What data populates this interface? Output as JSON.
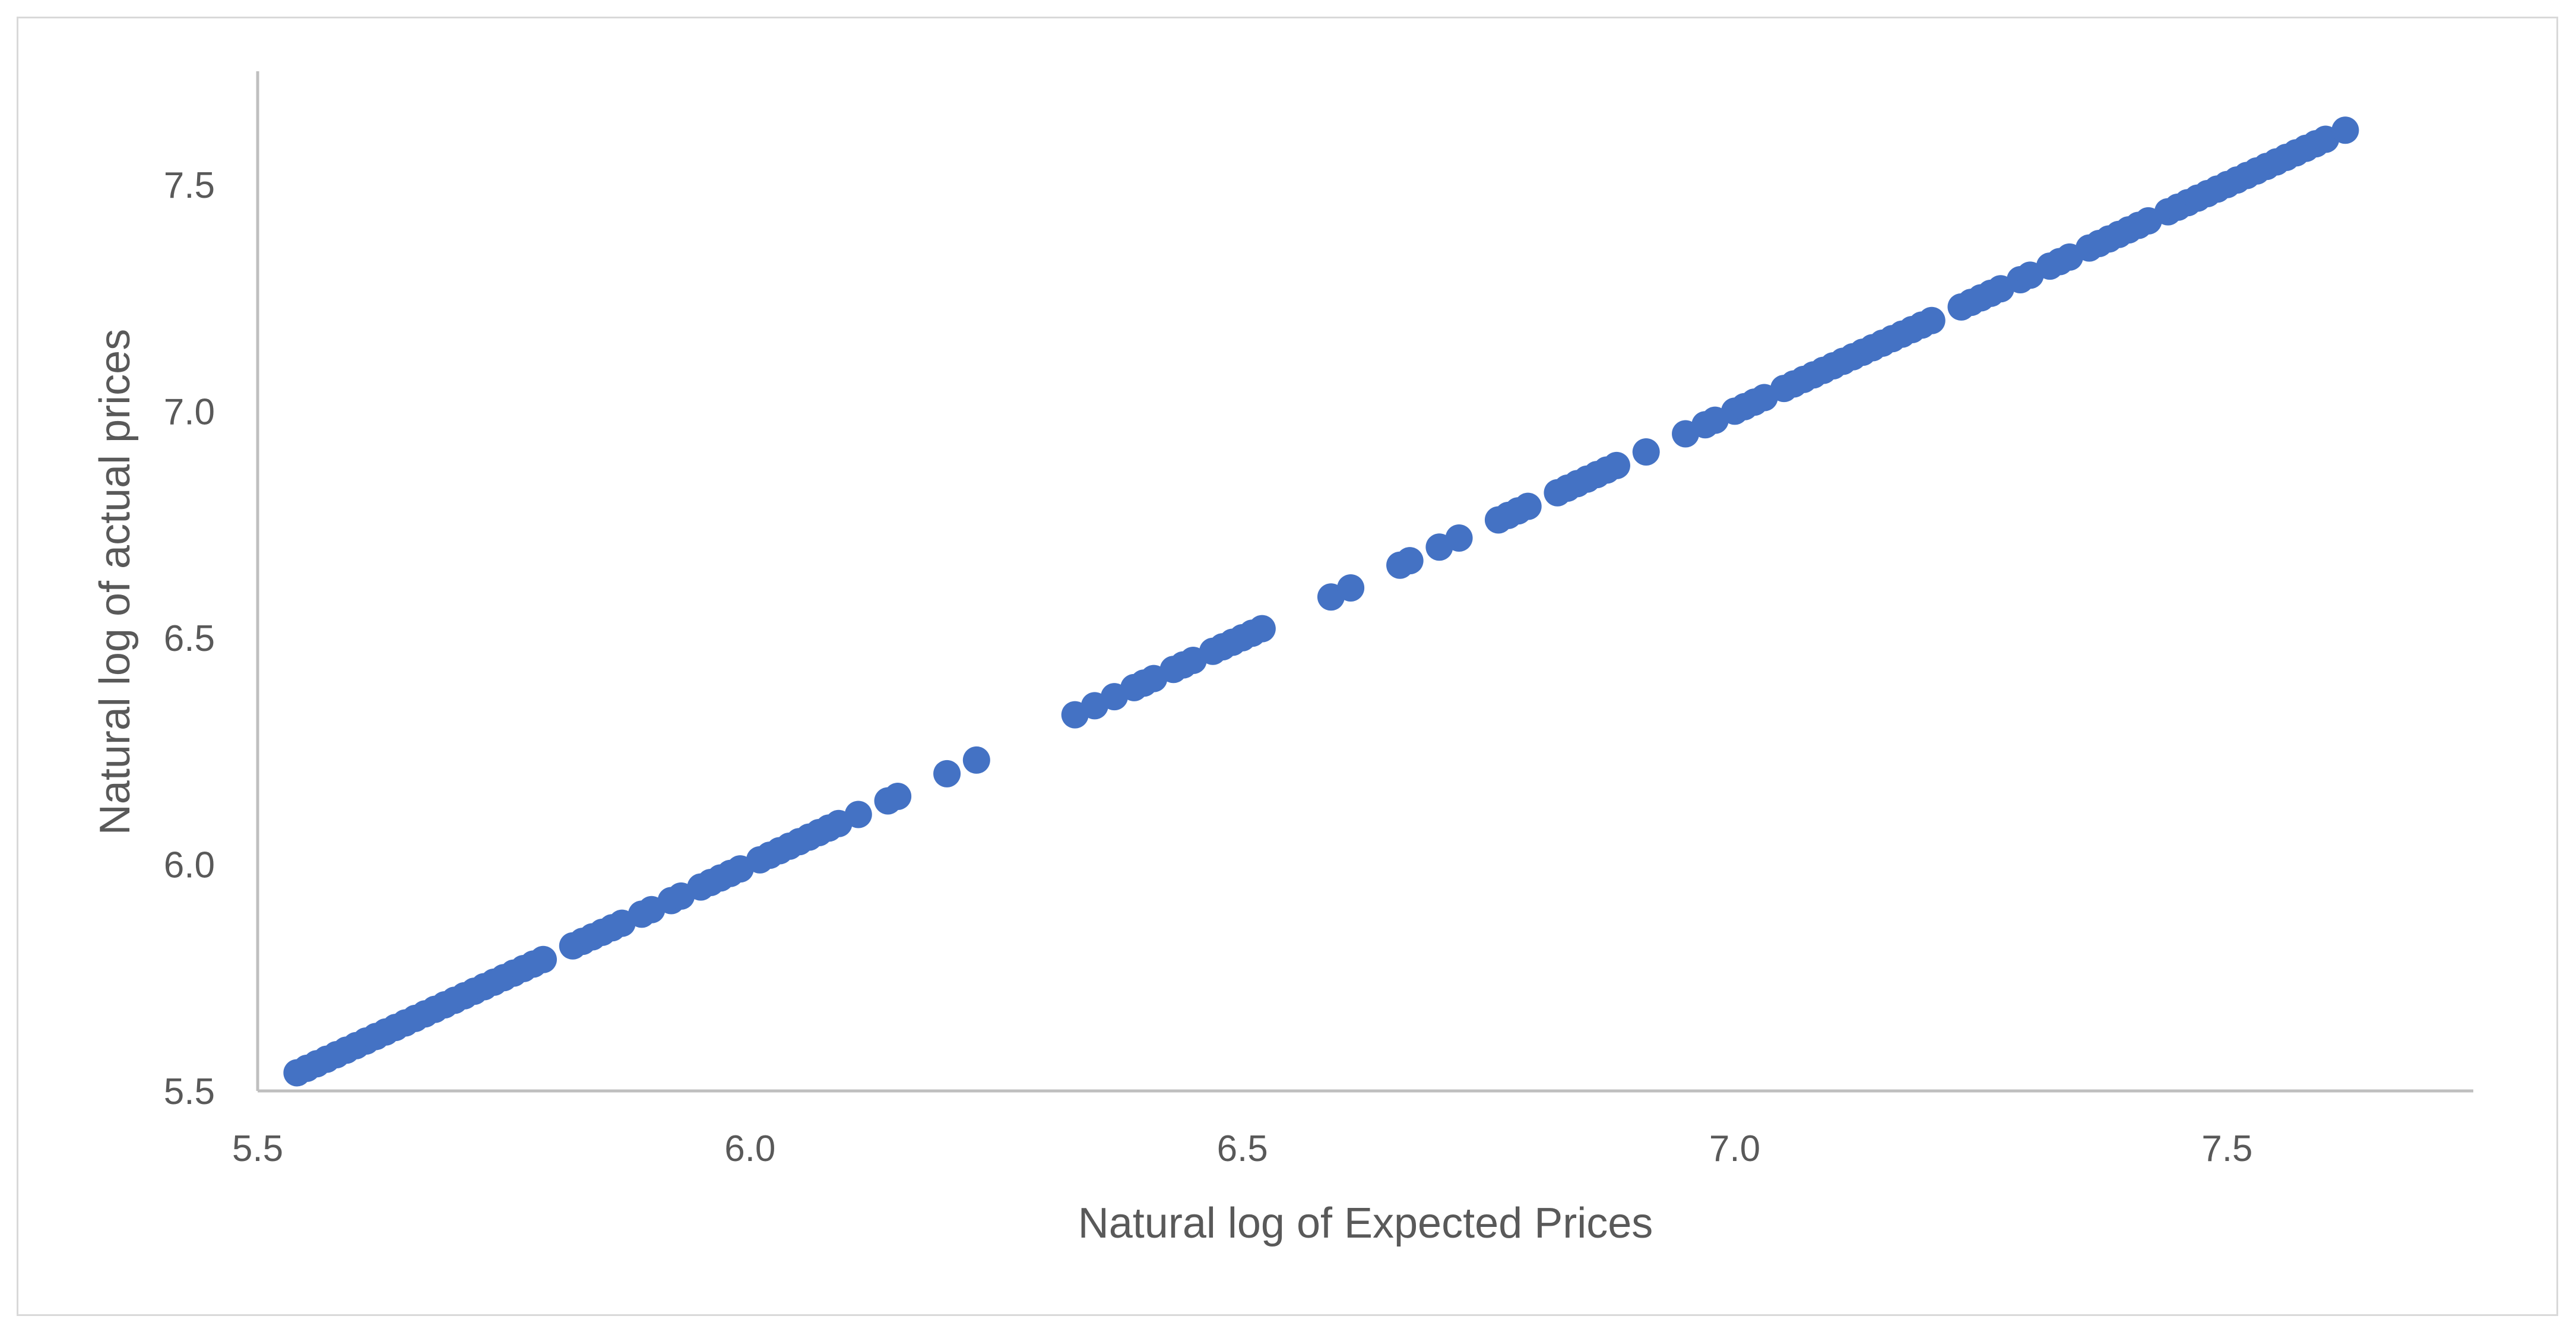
{
  "chart_data": {
    "type": "scatter",
    "title": "",
    "xlabel": "Natural log of Expected Prices",
    "ylabel": "Natural log of actual prices",
    "xlim": [
      5.5,
      7.75
    ],
    "ylim": [
      5.5,
      7.75
    ],
    "x_ticks": [
      "5.5",
      "6.0",
      "6.5",
      "7.0",
      "7.5"
    ],
    "y_ticks": [
      "5.5",
      "6.0",
      "6.5",
      "7.0",
      "7.5"
    ],
    "grid": false,
    "legend": "none",
    "marker_color": "#4472C4",
    "series": [
      {
        "x": [
          5.54,
          5.55,
          5.56,
          5.57,
          5.58,
          5.59,
          5.6,
          5.61,
          5.62,
          5.63,
          5.64,
          5.65,
          5.66,
          5.67,
          5.68,
          5.69,
          5.7,
          5.71,
          5.72,
          5.73,
          5.74,
          5.75,
          5.76,
          5.77,
          5.78,
          5.79,
          5.82,
          5.83,
          5.84,
          5.85,
          5.86,
          5.87,
          5.89,
          5.9,
          5.92,
          5.93,
          5.95,
          5.96,
          5.97,
          5.98,
          5.99,
          6.01,
          6.02,
          6.03,
          6.04,
          6.05,
          6.06,
          6.07,
          6.08,
          6.09,
          6.11,
          6.14,
          6.15,
          6.2,
          6.23,
          6.33,
          6.35,
          6.37,
          6.39,
          6.4,
          6.41,
          6.43,
          6.44,
          6.45,
          6.47,
          6.48,
          6.49,
          6.5,
          6.51,
          6.52,
          6.59,
          6.61,
          6.66,
          6.67,
          6.7,
          6.72,
          6.76,
          6.77,
          6.78,
          6.79,
          6.82,
          6.83,
          6.84,
          6.85,
          6.86,
          6.87,
          6.88,
          6.91,
          6.95,
          6.97,
          6.98,
          7.0,
          7.01,
          7.02,
          7.03,
          7.05,
          7.06,
          7.07,
          7.08,
          7.09,
          7.1,
          7.11,
          7.12,
          7.13,
          7.14,
          7.15,
          7.16,
          7.17,
          7.18,
          7.19,
          7.2,
          7.23,
          7.24,
          7.25,
          7.26,
          7.27,
          7.29,
          7.3,
          7.32,
          7.33,
          7.34,
          7.36,
          7.37,
          7.38,
          7.39,
          7.4,
          7.41,
          7.42,
          7.44,
          7.45,
          7.46,
          7.47,
          7.48,
          7.49,
          7.5,
          7.51,
          7.52,
          7.53,
          7.54,
          7.55,
          7.56,
          7.57,
          7.58,
          7.59,
          7.6,
          7.62
        ],
        "y": [
          5.54,
          5.55,
          5.56,
          5.57,
          5.58,
          5.59,
          5.6,
          5.61,
          5.62,
          5.63,
          5.64,
          5.65,
          5.66,
          5.67,
          5.68,
          5.69,
          5.7,
          5.71,
          5.72,
          5.73,
          5.74,
          5.75,
          5.76,
          5.77,
          5.78,
          5.79,
          5.82,
          5.83,
          5.84,
          5.85,
          5.86,
          5.87,
          5.89,
          5.9,
          5.92,
          5.93,
          5.95,
          5.96,
          5.97,
          5.98,
          5.99,
          6.01,
          6.02,
          6.03,
          6.04,
          6.05,
          6.06,
          6.07,
          6.08,
          6.09,
          6.11,
          6.14,
          6.15,
          6.2,
          6.23,
          6.33,
          6.35,
          6.37,
          6.39,
          6.4,
          6.41,
          6.43,
          6.44,
          6.45,
          6.47,
          6.48,
          6.49,
          6.5,
          6.51,
          6.52,
          6.59,
          6.61,
          6.66,
          6.67,
          6.7,
          6.72,
          6.76,
          6.77,
          6.78,
          6.79,
          6.82,
          6.83,
          6.84,
          6.85,
          6.86,
          6.87,
          6.88,
          6.91,
          6.95,
          6.97,
          6.98,
          7.0,
          7.01,
          7.02,
          7.03,
          7.05,
          7.06,
          7.07,
          7.08,
          7.09,
          7.1,
          7.11,
          7.12,
          7.13,
          7.14,
          7.15,
          7.16,
          7.17,
          7.18,
          7.19,
          7.2,
          7.23,
          7.24,
          7.25,
          7.26,
          7.27,
          7.29,
          7.3,
          7.32,
          7.33,
          7.34,
          7.36,
          7.37,
          7.38,
          7.39,
          7.4,
          7.41,
          7.42,
          7.44,
          7.45,
          7.46,
          7.47,
          7.48,
          7.49,
          7.5,
          7.51,
          7.52,
          7.53,
          7.54,
          7.55,
          7.56,
          7.57,
          7.58,
          7.59,
          7.6,
          7.62
        ]
      }
    ]
  }
}
